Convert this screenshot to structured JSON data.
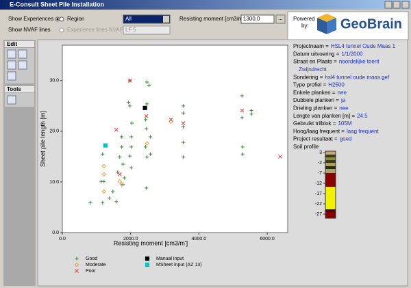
{
  "window": {
    "title": "E-Consult Sheet Pile Installation"
  },
  "toolbar": {
    "show_experiences": "Show Experiences",
    "region": "Region",
    "region_value": "All",
    "show_nvaf": "Show NVAF lines",
    "experience_lines": "Experience lines NVAF",
    "lf_value": "LF 5",
    "moment_label": "Resisting moment [cm3/m']",
    "moment_value": "1300.0",
    "browse": "...",
    "powered": "Powered",
    "by": "by:",
    "logo": "GeoBrain"
  },
  "side_panel": {
    "edit": "Edit",
    "tools": "Tools"
  },
  "chart_data": {
    "type": "scatter",
    "xlabel": "Resisting moment [cm3/m']",
    "ylabel": "Sheet pile length [m]",
    "xlim": [
      0,
      6600
    ],
    "ylim": [
      0,
      37
    ],
    "xticks": [
      {
        "value": 0,
        "label": "0.0"
      },
      {
        "value": 2000,
        "label": "2000.0"
      },
      {
        "value": 4000,
        "label": "4000.0"
      },
      {
        "value": 6000,
        "label": "6000.0"
      }
    ],
    "yticks": [
      {
        "value": 0,
        "label": "0.0"
      },
      {
        "value": 10,
        "label": "10.0"
      },
      {
        "value": 20,
        "label": "20.0"
      },
      {
        "value": 30,
        "label": "30.0"
      }
    ],
    "legend": "below",
    "series": [
      {
        "name": "Good",
        "color": "#2e8b2e",
        "marker": "plus",
        "x": [
          820,
          1180,
          1140,
          1220,
          1180,
          1480,
          1580,
          1620,
          1680,
          1740,
          1740,
          1780,
          1820,
          1940,
          1980,
          1980,
          2020,
          2020,
          1980,
          2020,
          2480,
          2480,
          2440,
          2460,
          2440,
          2480,
          2460,
          2540,
          2580,
          2580,
          3540,
          3540,
          3540,
          3540,
          3540,
          5260,
          5260,
          5280,
          5280,
          5540,
          5540,
          2040,
          1780,
          1380
        ],
        "y": [
          5.9,
          5.9,
          10.1,
          10.1,
          15.5,
          8.1,
          6.1,
          11.9,
          14.9,
          18.9,
          16.9,
          13.5,
          10.8,
          25.7,
          25,
          30,
          18.9,
          16.9,
          15.1,
          12.8,
          29.7,
          25.4,
          22.3,
          20.5,
          16.9,
          14.9,
          8.8,
          29.1,
          18.9,
          15.5,
          25,
          23.6,
          20.9,
          17.8,
          14.9,
          27,
          22.7,
          16.9,
          15.5,
          24.1,
          23.4,
          21.6,
          9.5,
          6.8
        ]
      },
      {
        "name": "Moderate",
        "color": "#e8a040",
        "marker": "diamond",
        "x": [
          1220,
          1220,
          1220,
          1680,
          1740,
          2480,
          3180
        ],
        "y": [
          13.1,
          11.5,
          8.1,
          10.1,
          9.5,
          17.6,
          21.9
        ]
      },
      {
        "name": "Poor",
        "color": "#e04040",
        "marker": "x",
        "x": [
          1580,
          1680,
          1980,
          2460,
          3180,
          3540,
          5260,
          6380
        ],
        "y": [
          20.3,
          11.5,
          30,
          23,
          22.3,
          21.6,
          24.1,
          15
        ]
      },
      {
        "name": "Manual input",
        "color": "#000000",
        "marker": "square",
        "x": [
          2420
        ],
        "y": [
          24.6
        ]
      },
      {
        "name": "MSheet input (AZ 13)",
        "color": "#00c8c8",
        "marker": "square",
        "x": [
          1260
        ],
        "y": [
          17.2
        ]
      }
    ]
  },
  "info": {
    "items": [
      {
        "label": "Projectnaam =",
        "value": "HSL4 tunnel Oude Maas 1"
      },
      {
        "label": "Datum uitvoering =",
        "value": "1/1/2000"
      },
      {
        "label": "Straat en Plaats =",
        "value": [
          "noordelijke toerit",
          "Zwijndrecht"
        ]
      },
      {
        "label": "Sondering =",
        "value": "hsl4 tunnel oude maas.gef"
      },
      {
        "label": "Type profiel =",
        "value": "H2500"
      },
      {
        "label": "Enkele planken =",
        "value": "nee"
      },
      {
        "label": "Dubbele planken =",
        "value": "ja"
      },
      {
        "label": "Drieling planken =",
        "value": "nee"
      },
      {
        "label": "Lengte van planken [m] =",
        "value": "24.5"
      },
      {
        "label": "Gebruikt trilblok =",
        "value": "105M"
      },
      {
        "label": "Hoog/laag frequent =",
        "value": "laag frequent"
      },
      {
        "label": "Project resultaat =",
        "value": "goed"
      }
    ],
    "soil_title": "Soil profile",
    "soil_ticks": [
      3,
      -2,
      -7,
      -12,
      -17,
      -22,
      -27
    ]
  }
}
